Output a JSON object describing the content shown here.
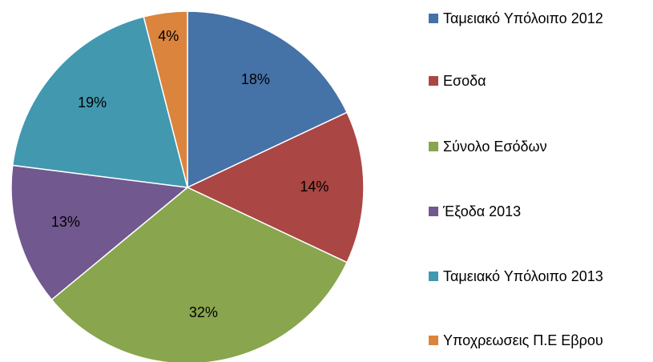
{
  "chart_data": {
    "type": "pie",
    "categories": [
      "Ταμειακό Υπόλοιπο 2012",
      "Εσοδα",
      "Σύνολο Εσόδων",
      "Έξοδα 2013",
      "Ταμειακό Υπόλοιπο 2013",
      "Υποχρεωσεις Π.Ε Εβρου"
    ],
    "values": [
      18,
      14,
      32,
      13,
      19,
      4
    ],
    "value_labels": [
      "18%",
      "14%",
      "32%",
      "13%",
      "19%",
      "4%"
    ],
    "colors": [
      "#4572a7",
      "#aa4643",
      "#89a54e",
      "#71588f",
      "#4198af",
      "#db843d"
    ],
    "legend": "right"
  }
}
